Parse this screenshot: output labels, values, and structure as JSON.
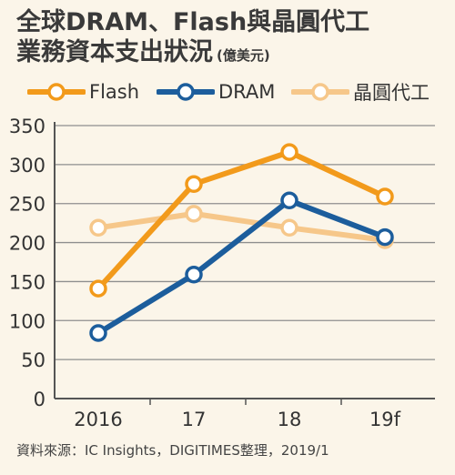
{
  "title": {
    "line1": "全球DRAM、Flash與晶圓代工",
    "line2": "業務資本支出狀況",
    "unit": "(億美元)"
  },
  "source": "資料來源：IC Insights，DIGITIMES整理，2019/1",
  "colors": {
    "background": "#fbf5e9",
    "grid": "#8e8e8e",
    "flash": "#f29a1b",
    "dram": "#1c5d9c",
    "foundry": "#f6c78a"
  },
  "chart_data": {
    "type": "line",
    "categories": [
      "2016",
      "17",
      "18",
      "19f"
    ],
    "ylim": [
      0,
      350
    ],
    "yticks": [
      0,
      50,
      100,
      150,
      200,
      250,
      300,
      350
    ],
    "grid": true,
    "legend_position": "top",
    "series": [
      {
        "name": "Flash",
        "color": "#f29a1b",
        "values": [
          141,
          275,
          316,
          259
        ]
      },
      {
        "name": "DRAM",
        "color": "#1c5d9c",
        "values": [
          84,
          159,
          254,
          207
        ]
      },
      {
        "name": "晶圓代工",
        "color": "#f6c78a",
        "values": [
          219,
          237,
          219,
          203
        ]
      }
    ]
  }
}
